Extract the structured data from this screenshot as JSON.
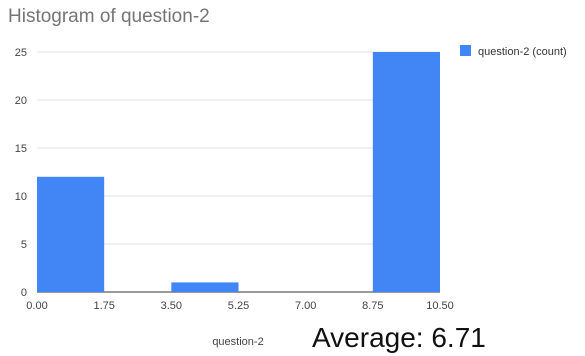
{
  "chart_data": {
    "type": "bar",
    "title": "Histogram of question-2",
    "xlabel": "question-2",
    "ylabel": "",
    "x_ticks": [
      "0.00",
      "1.75",
      "3.50",
      "5.25",
      "7.00",
      "8.75",
      "10.50"
    ],
    "x_range": [
      0,
      10.5
    ],
    "y_ticks": [
      0,
      5,
      10,
      15,
      20,
      25
    ],
    "ylim": [
      0,
      25
    ],
    "bins": [
      {
        "x0": 0.0,
        "x1": 1.75,
        "count": 12
      },
      {
        "x0": 3.5,
        "x1": 5.25,
        "count": 1
      },
      {
        "x0": 8.75,
        "x1": 10.5,
        "count": 25
      }
    ],
    "series": [
      {
        "name": "question-2 (count)",
        "color": "#4285f4"
      }
    ],
    "grid": true,
    "legend_position": "top-right"
  },
  "annotation": {
    "average_text": "Average: 6.71"
  }
}
